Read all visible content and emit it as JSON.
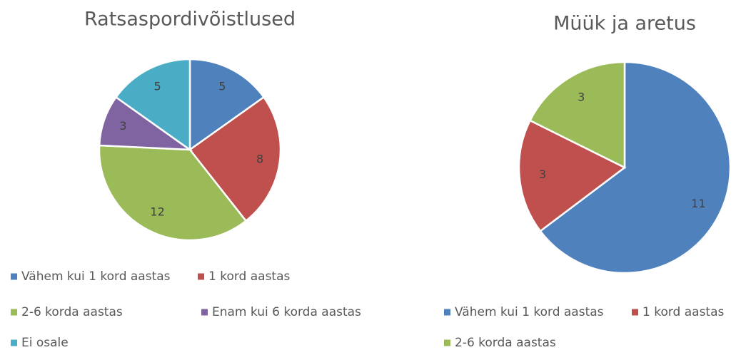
{
  "chart_data": [
    {
      "type": "pie",
      "title": "Ratsaspordivõistlused",
      "categories": [
        "Vähem kui 1 kord aastas",
        "1 kord aastas",
        "2-6 korda aastas",
        "Enam kui 6 korda aastas",
        "Ei osale"
      ],
      "values": [
        5,
        8,
        12,
        3,
        5
      ],
      "colors": [
        "#4f81bd",
        "#c0504d",
        "#9bbb59",
        "#8064a2",
        "#4bacc6"
      ]
    },
    {
      "type": "pie",
      "title": "Müük ja aretus",
      "categories": [
        "Vähem kui 1 kord aastas",
        "1 kord aastas",
        "2-6 korda aastas"
      ],
      "values": [
        11,
        3,
        3
      ],
      "colors": [
        "#4f81bd",
        "#c0504d",
        "#9bbb59"
      ]
    }
  ]
}
